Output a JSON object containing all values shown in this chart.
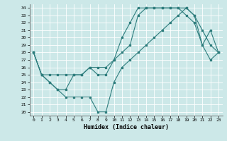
{
  "xlabel": "Humidex (Indice chaleur)",
  "bg_color": "#cce8e8",
  "grid_color": "#ffffff",
  "line_color": "#2e7d7d",
  "xlim": [
    -0.5,
    23.5
  ],
  "ylim": [
    19.5,
    34.5
  ],
  "yticks": [
    20,
    21,
    22,
    23,
    24,
    25,
    26,
    27,
    28,
    29,
    30,
    31,
    32,
    33,
    34
  ],
  "xticks": [
    0,
    1,
    2,
    3,
    4,
    5,
    6,
    7,
    8,
    9,
    10,
    11,
    12,
    13,
    14,
    15,
    16,
    17,
    18,
    19,
    20,
    21,
    22,
    23
  ],
  "line1_x": [
    0,
    1,
    2,
    3,
    4,
    5,
    6,
    7,
    8,
    9,
    10,
    11,
    12,
    13,
    14,
    15,
    16,
    17,
    18,
    19,
    20,
    21,
    22,
    23
  ],
  "line1_y": [
    28,
    25,
    24,
    23,
    23,
    25,
    25,
    26,
    25,
    25,
    27,
    30,
    32,
    34,
    34,
    34,
    34,
    34,
    34,
    33,
    32,
    29,
    31,
    28
  ],
  "line2_x": [
    0,
    1,
    2,
    3,
    4,
    5,
    6,
    7,
    8,
    9,
    10,
    11,
    12,
    13,
    14,
    15,
    16,
    17,
    18,
    19,
    20,
    21,
    22,
    23
  ],
  "line2_y": [
    28,
    25,
    25,
    25,
    25,
    25,
    25,
    26,
    26,
    26,
    27,
    28,
    29,
    33,
    34,
    34,
    34,
    34,
    34,
    34,
    33,
    31,
    29,
    28
  ],
  "line3_x": [
    0,
    1,
    2,
    3,
    4,
    5,
    6,
    7,
    8,
    9,
    10,
    11,
    12,
    13,
    14,
    15,
    16,
    17,
    18,
    19,
    20,
    21,
    22,
    23
  ],
  "line3_y": [
    28,
    25,
    24,
    23,
    22,
    22,
    22,
    22,
    20,
    20,
    24,
    26,
    27,
    28,
    29,
    30,
    31,
    32,
    33,
    34,
    33,
    29,
    27,
    28
  ]
}
